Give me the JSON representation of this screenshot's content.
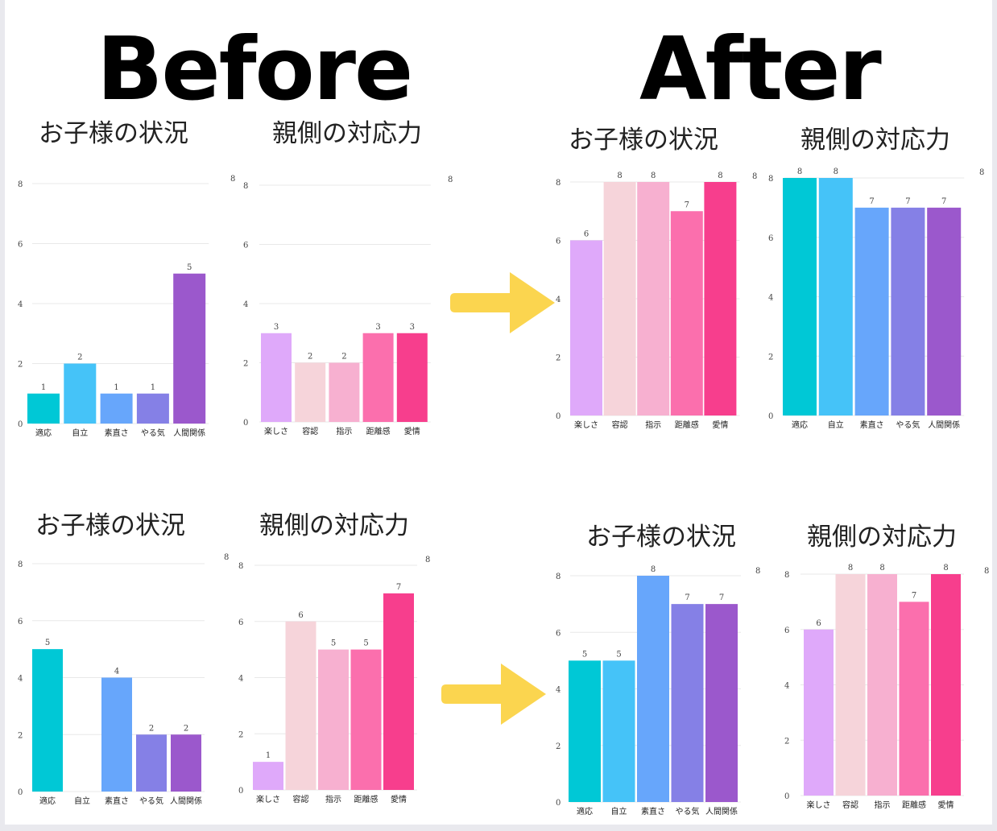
{
  "headings": {
    "before": "Before",
    "after": "After"
  },
  "colors": {
    "status": [
      "#00c8d6",
      "#45c3f8",
      "#67a6fb",
      "#8580e6",
      "#9b58cc"
    ],
    "response": [
      "#dfa9fa",
      "#f6d4da",
      "#f7b0d0",
      "#fb6fad",
      "#f73e8d"
    ],
    "arrow": "#fbd54f",
    "grid": "#e8e8e8"
  },
  "chart_data": [
    {
      "type": "bar",
      "title": "お子様の状況",
      "categories": [
        "適応",
        "自立",
        "素直さ",
        "やる気",
        "人間関係"
      ],
      "values": [
        1,
        2,
        1,
        1,
        5
      ],
      "ylim": [
        0,
        8
      ],
      "yticks": [
        0,
        2,
        4,
        6,
        8
      ],
      "corner_label": "8",
      "grid": true
    },
    {
      "type": "bar",
      "title": "親側の対応力",
      "categories": [
        "楽しさ",
        "容認",
        "指示",
        "距離感",
        "愛情"
      ],
      "values": [
        3,
        2,
        2,
        3,
        3
      ],
      "ylim": [
        0,
        8
      ],
      "yticks": [
        0,
        2,
        4,
        6,
        8
      ],
      "corner_label": "8",
      "grid": true
    },
    {
      "type": "bar",
      "title": "お子様の状況",
      "categories": [
        "楽しさ",
        "容認",
        "指示",
        "距離感",
        "愛情"
      ],
      "values": [
        6,
        8,
        8,
        7,
        8
      ],
      "ylim": [
        0,
        8
      ],
      "yticks": [
        0,
        2,
        4,
        6,
        8
      ],
      "corner_label": "8",
      "grid": true
    },
    {
      "type": "bar",
      "title": "親側の対応力",
      "categories": [
        "適応",
        "自立",
        "素直さ",
        "やる気",
        "人間関係"
      ],
      "values": [
        8,
        8,
        7,
        7,
        7
      ],
      "ylim": [
        0,
        8
      ],
      "yticks": [
        0,
        2,
        4,
        6,
        8
      ],
      "corner_label": "8",
      "grid": true
    },
    {
      "type": "bar",
      "title": "お子様の状況",
      "categories": [
        "適応",
        "自立",
        "素直さ",
        "やる気",
        "人間関係"
      ],
      "values": [
        5,
        0,
        4,
        2,
        2
      ],
      "ylim": [
        0,
        8
      ],
      "yticks": [
        0,
        2,
        4,
        6,
        8
      ],
      "corner_label": "8",
      "grid": true
    },
    {
      "type": "bar",
      "title": "親側の対応力",
      "categories": [
        "楽しさ",
        "容認",
        "指示",
        "距離感",
        "愛情"
      ],
      "values": [
        1,
        6,
        5,
        5,
        7
      ],
      "ylim": [
        0,
        8
      ],
      "yticks": [
        0,
        2,
        4,
        6,
        8
      ],
      "corner_label": "8",
      "grid": true
    },
    {
      "type": "bar",
      "title": "お子様の状況",
      "categories": [
        "適応",
        "自立",
        "素直さ",
        "やる気",
        "人間関係"
      ],
      "values": [
        5,
        5,
        8,
        7,
        7
      ],
      "ylim": [
        0,
        8
      ],
      "yticks": [
        0,
        2,
        4,
        6,
        8
      ],
      "corner_label": "8",
      "grid": true
    },
    {
      "type": "bar",
      "title": "親側の対応力",
      "categories": [
        "楽しさ",
        "容認",
        "指示",
        "距離感",
        "愛情"
      ],
      "values": [
        6,
        8,
        8,
        7,
        8
      ],
      "ylim": [
        0,
        8
      ],
      "yticks": [
        0,
        2,
        4,
        6,
        8
      ],
      "corner_label": "8",
      "grid": true
    }
  ]
}
